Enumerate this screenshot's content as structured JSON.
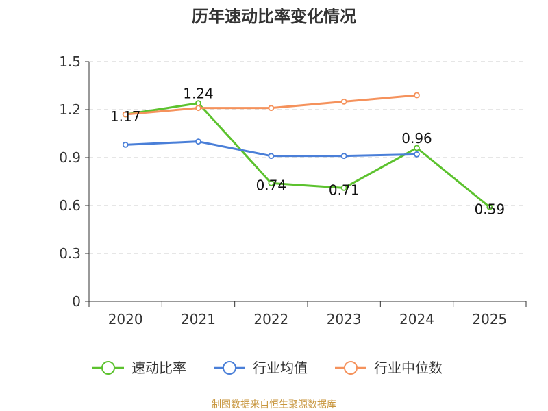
{
  "chart_data": {
    "type": "line",
    "title": "历年速动比率变化情况",
    "categories": [
      "2020",
      "2021",
      "2022",
      "2023",
      "2024",
      "2025"
    ],
    "ylim": [
      0,
      1.5
    ],
    "yticks": [
      "0",
      "0.3",
      "0.6",
      "0.9",
      "1.2",
      "1.5"
    ],
    "grid": true,
    "legend_position": "bottom",
    "series": [
      {
        "name": "速动比率",
        "color": "#5cc22e",
        "values": [
          1.17,
          1.24,
          0.74,
          0.71,
          0.96,
          0.59
        ],
        "labels": [
          "1.17",
          "1.24",
          "0.74",
          "0.71",
          "0.96",
          "0.59"
        ]
      },
      {
        "name": "行业均值",
        "color": "#4a7fd8",
        "values": [
          0.98,
          1.0,
          0.91,
          0.91,
          0.92,
          null
        ]
      },
      {
        "name": "行业中位数",
        "color": "#f5925c",
        "values": [
          1.17,
          1.21,
          1.21,
          1.25,
          1.29,
          null
        ]
      }
    ],
    "source": "制图数据来自恒生聚源数据库"
  }
}
